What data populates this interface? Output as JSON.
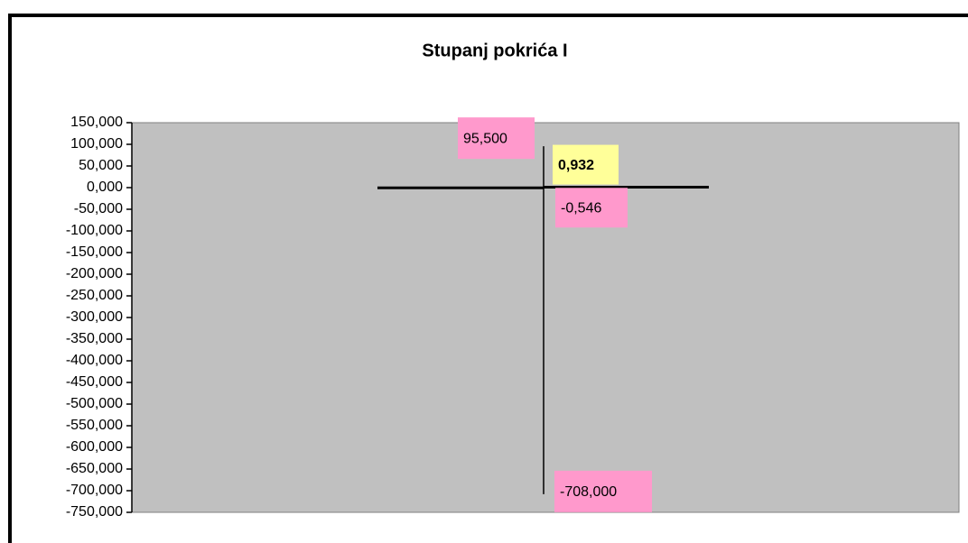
{
  "chart_data": {
    "type": "stock",
    "title": "Stupanj pokrića I",
    "categories": [
      null
    ],
    "high": {
      "values": [
        95.5
      ],
      "value_labels": [
        "95,500"
      ]
    },
    "low": {
      "values": [
        -708
      ],
      "value_labels": [
        "-708,000"
      ]
    },
    "open": {
      "values": [
        -0.546
      ],
      "value_labels": [
        "-0,546"
      ]
    },
    "close": {
      "values": [
        0.932
      ],
      "value_labels": [
        "0,932"
      ]
    },
    "color": "#000000",
    "plot_background": "#c0c0c0",
    "label_color": "#ff99cc",
    "close_label_color": "#ffff99",
    "ylim": [
      -750,
      150
    ],
    "yticks": [
      {
        "value": 150,
        "label": "150,000"
      },
      {
        "value": 100,
        "label": "100,000"
      },
      {
        "value": 50,
        "label": "50,000"
      },
      {
        "value": 0,
        "label": "0,000"
      },
      {
        "value": -50,
        "label": "-50,000"
      },
      {
        "value": -100,
        "label": "-100,000"
      },
      {
        "value": -150,
        "label": "-150,000"
      },
      {
        "value": -200,
        "label": "-200,000"
      },
      {
        "value": -250,
        "label": "-250,000"
      },
      {
        "value": -300,
        "label": "-300,000"
      },
      {
        "value": -350,
        "label": "-350,000"
      },
      {
        "value": -400,
        "label": "-400,000"
      },
      {
        "value": -450,
        "label": "-450,000"
      },
      {
        "value": -500,
        "label": "-500,000"
      },
      {
        "value": -550,
        "label": "-550,000"
      },
      {
        "value": -600,
        "label": "-600,000"
      },
      {
        "value": -650,
        "label": "-650,000"
      },
      {
        "value": -700,
        "label": "-700,000"
      },
      {
        "value": -750,
        "label": "-750,000"
      }
    ]
  }
}
